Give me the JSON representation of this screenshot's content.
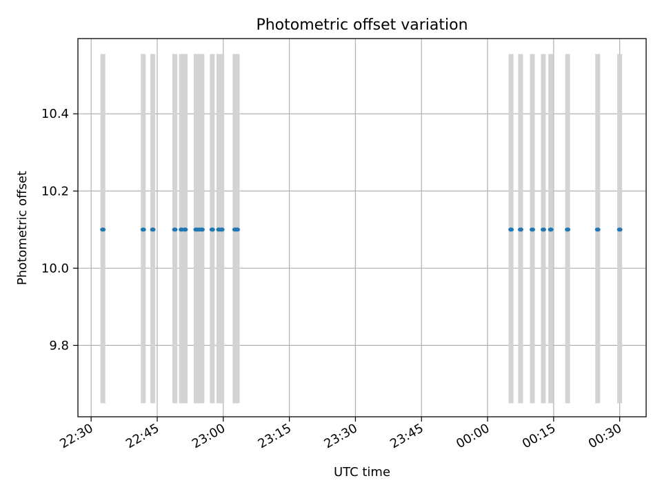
{
  "chart_data": {
    "type": "scatter",
    "title": "Photometric offset variation",
    "xlabel": "UTC time",
    "ylabel": "Photometric offset",
    "grid": true,
    "x_axis": {
      "kind": "time",
      "ticks": [
        "22:30",
        "22:45",
        "23:00",
        "23:15",
        "23:30",
        "23:45",
        "00:00",
        "00:15",
        "00:30"
      ],
      "xlim": [
        "22:27:00",
        "00:36:00"
      ]
    },
    "y_axis": {
      "ticks": [
        "9.8",
        "10.0",
        "10.2",
        "10.4"
      ],
      "ylim": [
        9.615,
        10.595
      ]
    },
    "series": [
      {
        "points": [
          {
            "t": "22:32:40",
            "y": 10.1,
            "lo": 9.65,
            "hi": 10.555
          },
          {
            "t": "22:41:50",
            "y": 10.1,
            "lo": 9.65,
            "hi": 10.555
          },
          {
            "t": "22:44:00",
            "y": 10.1,
            "lo": 9.65,
            "hi": 10.555
          },
          {
            "t": "22:49:00",
            "y": 10.1,
            "lo": 9.65,
            "hi": 10.555
          },
          {
            "t": "22:50:30",
            "y": 10.1,
            "lo": 9.65,
            "hi": 10.555
          },
          {
            "t": "22:51:20",
            "y": 10.1,
            "lo": 9.65,
            "hi": 10.555
          },
          {
            "t": "22:53:50",
            "y": 10.1,
            "lo": 9.65,
            "hi": 10.555
          },
          {
            "t": "22:54:30",
            "y": 10.1,
            "lo": 9.65,
            "hi": 10.555
          },
          {
            "t": "22:55:10",
            "y": 10.1,
            "lo": 9.65,
            "hi": 10.555
          },
          {
            "t": "22:57:30",
            "y": 10.1,
            "lo": 9.65,
            "hi": 10.555
          },
          {
            "t": "22:59:00",
            "y": 10.1,
            "lo": 9.65,
            "hi": 10.555
          },
          {
            "t": "22:59:40",
            "y": 10.1,
            "lo": 9.65,
            "hi": 10.555
          },
          {
            "t": "23:02:40",
            "y": 10.1,
            "lo": 9.65,
            "hi": 10.555
          },
          {
            "t": "23:03:10",
            "y": 10.1,
            "lo": 9.65,
            "hi": 10.555
          },
          {
            "t": "00:05:20",
            "y": 10.1,
            "lo": 9.65,
            "hi": 10.555
          },
          {
            "t": "00:07:30",
            "y": 10.1,
            "lo": 9.65,
            "hi": 10.555
          },
          {
            "t": "00:10:10",
            "y": 10.1,
            "lo": 9.65,
            "hi": 10.555
          },
          {
            "t": "00:12:40",
            "y": 10.1,
            "lo": 9.65,
            "hi": 10.555
          },
          {
            "t": "00:14:20",
            "y": 10.1,
            "lo": 9.65,
            "hi": 10.555
          },
          {
            "t": "00:18:10",
            "y": 10.1,
            "lo": 9.65,
            "hi": 10.555
          },
          {
            "t": "00:25:00",
            "y": 10.1,
            "lo": 9.65,
            "hi": 10.555
          },
          {
            "t": "00:30:00",
            "y": 10.1,
            "lo": 9.65,
            "hi": 10.555
          }
        ]
      }
    ],
    "colors": {
      "point": "#1f77b4",
      "errorbar": "#d3d3d3",
      "grid": "#b0b0b0"
    }
  }
}
